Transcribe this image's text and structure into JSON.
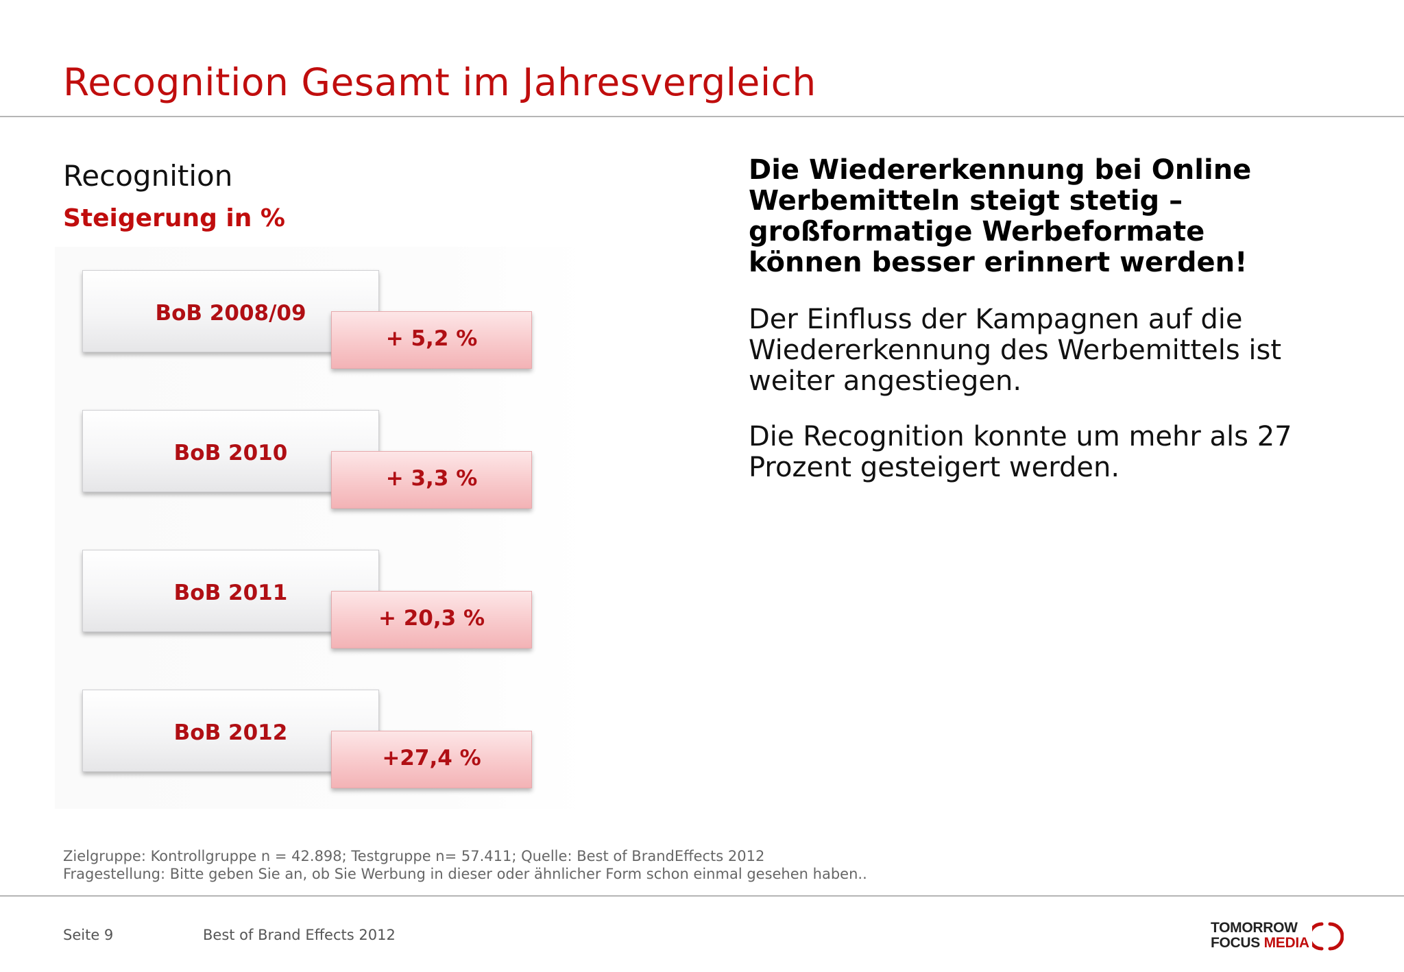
{
  "header": {
    "title": "Recognition Gesamt im Jahresvergleich"
  },
  "left": {
    "heading": "Recognition",
    "subheading": "Steigerung in %",
    "items": [
      {
        "label": "BoB 2008/09",
        "value": "+ 5,2 %"
      },
      {
        "label": "BoB 2010",
        "value": "+ 3,3 %"
      },
      {
        "label": "BoB 2011",
        "value": "+ 20,3 %"
      },
      {
        "label": "BoB 2012",
        "value": "+27,4 %"
      }
    ]
  },
  "right": {
    "headline": "Die Wiedererkennung bei Online Werbemitteln steigt stetig – großformatige Werbeformate können besser erinnert werden!",
    "paragraph1": "Der Einfluss der Kampagnen auf die Wiedererkennung des Werbemittels ist weiter angestiegen.",
    "paragraph2": "Die Recognition konnte um mehr als 27 Prozent gesteigert werden."
  },
  "notes": {
    "line1": "Zielgruppe: Kontrollgruppe n = 42.898; Testgruppe n= 57.411; Quelle: Best of BrandEffects 2012",
    "line2": "Fragestellung: Bitte geben Sie an, ob Sie Werbung in dieser oder ähnlicher Form schon einmal gesehen haben.."
  },
  "footer": {
    "page": "Seite 9",
    "title": "Best of Brand Effects 2012",
    "logo_line1": "TOMORROW",
    "logo_line2a": "FOCUS",
    "logo_line2b": "MEDIA"
  },
  "colors": {
    "accent": "#c00d0d",
    "value_text": "#b00f14",
    "pink_box": "#f8c9cb",
    "gray_box": "#f0f0f2"
  }
}
